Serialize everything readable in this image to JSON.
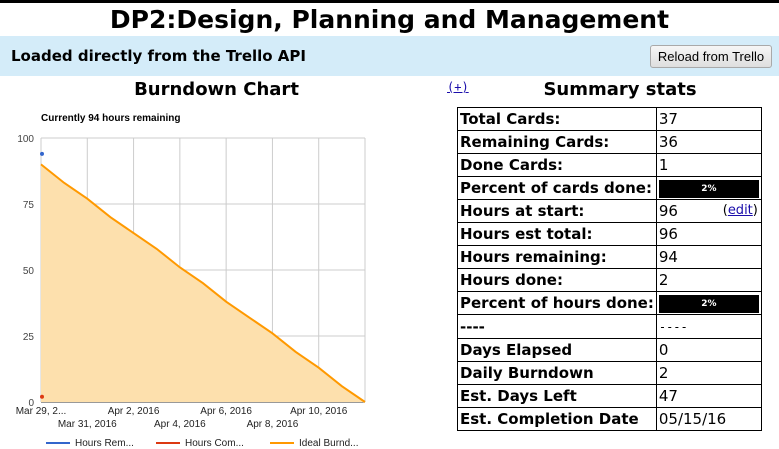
{
  "page": {
    "title": "DP2:Design, Planning and Management",
    "banner_text": "Loaded directly from the Trello API",
    "reload_label": "Reload from Trello",
    "plus_link": "(+)"
  },
  "burndown": {
    "heading": "Burndown Chart"
  },
  "chart_data": {
    "type": "area",
    "title": "Currently 94 hours remaining",
    "ylim": [
      0,
      100
    ],
    "y_ticks": [
      0,
      25,
      50,
      75,
      100
    ],
    "x_range": [
      "2016-03-29",
      "2016-04-13"
    ],
    "x_tick_labels": [
      {
        "date": "2016-03-29",
        "label": "Mar 29, 2...",
        "row": 1
      },
      {
        "date": "2016-03-31",
        "label": "Mar 31, 2016",
        "row": 2
      },
      {
        "date": "2016-04-02",
        "label": "Apr 2, 2016",
        "row": 1
      },
      {
        "date": "2016-04-04",
        "label": "Apr 4, 2016",
        "row": 2
      },
      {
        "date": "2016-04-06",
        "label": "Apr 6, 2016",
        "row": 1
      },
      {
        "date": "2016-04-08",
        "label": "Apr 8, 2016",
        "row": 2
      },
      {
        "date": "2016-04-10",
        "label": "Apr 10, 2016",
        "row": 1
      }
    ],
    "grid": true,
    "legend_position": "bottom",
    "series": [
      {
        "name": "Hours Rem...",
        "color": "#3366cc",
        "points": [
          [
            "2016-03-29",
            94
          ]
        ]
      },
      {
        "name": "Hours Com...",
        "color": "#dc3912",
        "points": [
          [
            "2016-03-29",
            2
          ]
        ]
      },
      {
        "name": "Ideal Burnd...",
        "color": "#ff9900",
        "fill": "#fde0ad",
        "points": [
          [
            "2016-03-29",
            90
          ],
          [
            "2016-03-30",
            83
          ],
          [
            "2016-03-31",
            77
          ],
          [
            "2016-04-01",
            70
          ],
          [
            "2016-04-02",
            64
          ],
          [
            "2016-04-03",
            58
          ],
          [
            "2016-04-04",
            51
          ],
          [
            "2016-04-05",
            45
          ],
          [
            "2016-04-06",
            38
          ],
          [
            "2016-04-07",
            32
          ],
          [
            "2016-04-08",
            26
          ],
          [
            "2016-04-09",
            19
          ],
          [
            "2016-04-10",
            13
          ],
          [
            "2016-04-11",
            6
          ],
          [
            "2016-04-12",
            0
          ]
        ]
      }
    ]
  },
  "stats": {
    "heading": "Summary stats",
    "edit_label": "edit",
    "rows": [
      {
        "label": "Total Cards:",
        "value": "37"
      },
      {
        "label": "Remaining Cards:",
        "value": "36"
      },
      {
        "label": "Done Cards:",
        "value": "1"
      },
      {
        "label": "Percent of cards done:",
        "value": "2%",
        "bar": true,
        "fraction": 0.02
      },
      {
        "label": "Hours at start:",
        "value": "96",
        "editable": true
      },
      {
        "label": "Hours est total:",
        "value": "96"
      },
      {
        "label": "Hours remaining:",
        "value": "94"
      },
      {
        "label": "Hours done:",
        "value": "2"
      },
      {
        "label": "Percent of hours done:",
        "value": "2%",
        "bar": true,
        "fraction": 0.02
      },
      {
        "label": "----",
        "value": "----",
        "dash": true
      },
      {
        "label": "Days Elapsed",
        "value": "0"
      },
      {
        "label": "Daily Burndown",
        "value": "2"
      },
      {
        "label": "Est. Days Left",
        "value": "47"
      },
      {
        "label": "Est. Completion Date",
        "value": "05/15/16"
      }
    ]
  },
  "colors": {
    "banner_bg": "#d4ecf9",
    "link": "#1a0dab",
    "ideal_line": "#ff9900",
    "ideal_fill": "#fde0ad",
    "remaining": "#3366cc",
    "completed": "#dc3912"
  }
}
